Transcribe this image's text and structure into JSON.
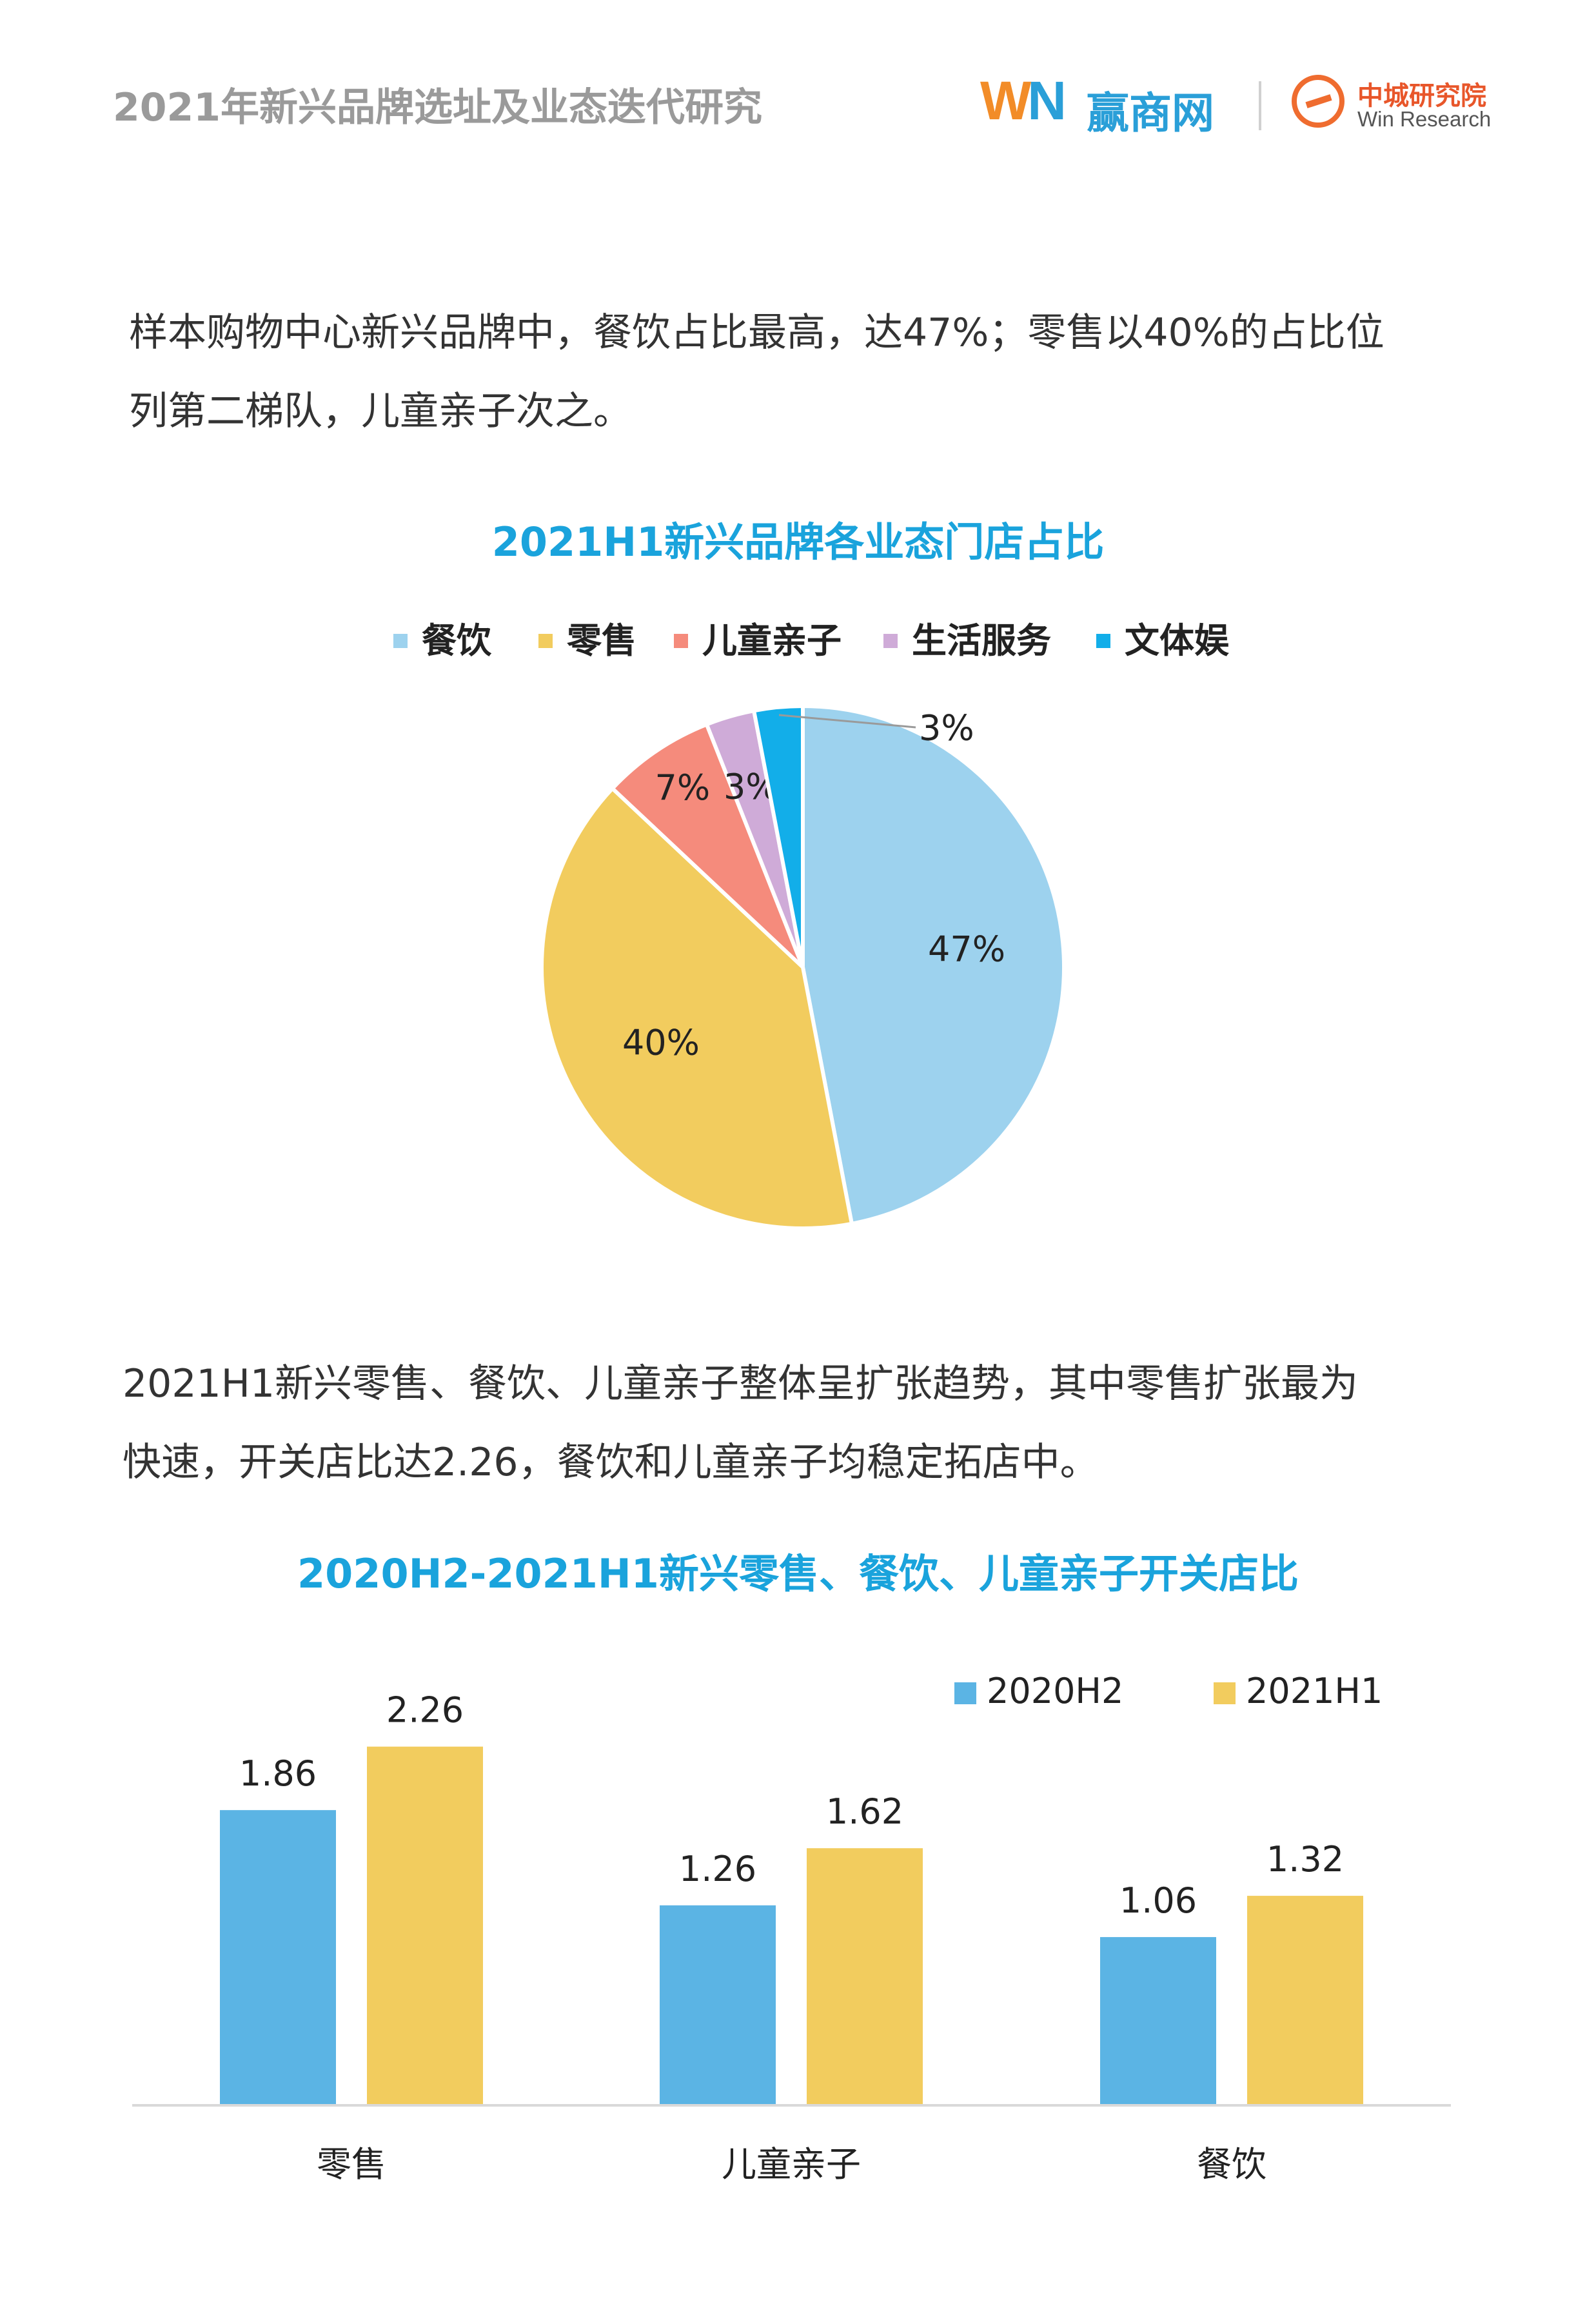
{
  "header": {
    "title": "2021年新兴品牌选址及业态迭代研究",
    "logo_win_w": "W",
    "logo_win_n": "N",
    "logo_win_cn": "赢商网",
    "logo_research_cn": "中城研究院",
    "logo_research_en": "Win Research"
  },
  "paragraphs": {
    "p1_line1": "样本购物中心新兴品牌中，餐饮占比最高，达47%；零售以40%的占比位",
    "p1_line2": "列第二梯队，儿童亲子次之。",
    "p2_line1": "2021H1新兴零售、餐饮、儿童亲子整体呈扩张趋势，其中零售扩张最为",
    "p2_line2": "快速，开关店比达2.26，餐饮和儿童亲子均稳定拓店中。"
  },
  "chart_data": [
    {
      "type": "pie",
      "title": "2021H1新兴品牌各业态门店占比",
      "legend_position": "top",
      "slices": [
        {
          "label": "餐饮",
          "value": 47,
          "display": "47%",
          "color": "#9dd2ee"
        },
        {
          "label": "零售",
          "value": 40,
          "display": "40%",
          "color": "#f2cc5e"
        },
        {
          "label": "儿童亲子",
          "value": 7,
          "display": "7%",
          "color": "#f58b7c"
        },
        {
          "label": "生活服务",
          "value": 3,
          "display": "3%",
          "color": "#cfabd8"
        },
        {
          "label": "文体娱",
          "value": 3,
          "display": "3%",
          "color": "#12aee9"
        }
      ]
    },
    {
      "type": "bar",
      "title": "2020H2-2021H1新兴零售、餐饮、儿童亲子开关店比",
      "categories": [
        "零售",
        "儿童亲子",
        "餐饮"
      ],
      "series": [
        {
          "name": "2020H2",
          "values": [
            1.86,
            1.26,
            1.06
          ],
          "labels": [
            "1.86",
            "1.26",
            "1.06"
          ],
          "color": "#5bb4e4"
        },
        {
          "name": "2021H1",
          "values": [
            2.26,
            1.62,
            1.32
          ],
          "labels": [
            "2.26",
            "1.62",
            "1.32"
          ],
          "color": "#f2cc5e"
        }
      ],
      "ylim": [
        0,
        2.6
      ],
      "legend_position": "top-right",
      "grid": false
    }
  ]
}
